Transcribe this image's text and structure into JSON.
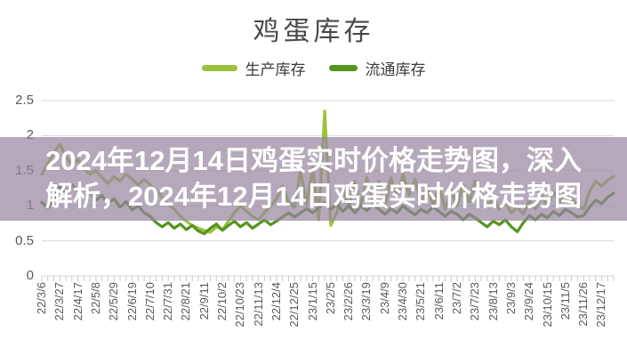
{
  "title": "鸡蛋库存",
  "legend": {
    "items": [
      {
        "label": "生产库存",
        "color": "#9cc13d",
        "swatch_width": 40
      },
      {
        "label": "流通库存",
        "color": "#55941f",
        "swatch_width": 32
      }
    ]
  },
  "overlay": {
    "line1": "2024年12月14日鸡蛋实时价格走势图，深入",
    "line2": "解析，2024年12月14日鸡蛋实时价格走势图",
    "text_color": "#ffffff",
    "bg_color": "rgba(149,131,158,0.7)"
  },
  "colors": {
    "gridline": "#d9d9d9",
    "tick": "#c8c8c8",
    "axis_text": "#595959",
    "title_text": "#484848"
  },
  "chart_data": {
    "type": "line",
    "title": "鸡蛋库存",
    "xlabel": "",
    "ylabel": "",
    "ylim": [
      0,
      2.5
    ],
    "grid": true,
    "legend_position": "top",
    "yticks": [
      0,
      0.5,
      1,
      1.5,
      2,
      2.5
    ],
    "ytick_labels": [
      "0",
      "0.5",
      "1",
      "1.5",
      "2",
      "2.5"
    ],
    "x_labels": [
      "22/3/6",
      "22/3/27",
      "22/4/17",
      "22/5/8",
      "22/5/29",
      "22/6/19",
      "22/7/10",
      "22/7/31",
      "22/8/21",
      "22/9/11",
      "22/10/2",
      "22/10/23",
      "22/11/13",
      "22/12/4",
      "22/12/25",
      "23/1/15",
      "23/2/5",
      "23/2/26",
      "23/3/19",
      "23/4/9",
      "23/4/30",
      "23/5/21",
      "23/6/11",
      "23/7/2",
      "23/7/23",
      "23/8/13",
      "23/9/3",
      "23/9/24",
      "23/10/15",
      "23/11/5",
      "23/11/26",
      "23/12/17"
    ],
    "x_label_every_n_points": 3,
    "series": [
      {
        "name": "生产库存",
        "color": "#9cc13d",
        "values": [
          1.45,
          1.6,
          1.75,
          1.88,
          1.7,
          1.58,
          1.66,
          1.52,
          1.45,
          1.5,
          1.4,
          1.32,
          1.42,
          1.35,
          1.45,
          1.38,
          1.3,
          1.38,
          1.3,
          1.22,
          1.12,
          1.02,
          0.95,
          0.85,
          0.78,
          0.72,
          0.68,
          0.65,
          0.62,
          0.7,
          0.66,
          0.78,
          0.9,
          1.0,
          0.92,
          0.85,
          0.8,
          0.9,
          1.0,
          1.1,
          1.28,
          1.05,
          0.98,
          1.5,
          1.02,
          1.55,
          0.8,
          2.35,
          0.72,
          0.9,
          1.25,
          0.98,
          1.35,
          1.0,
          1.4,
          1.05,
          1.35,
          0.98,
          1.4,
          1.1,
          1.45,
          1.15,
          1.38,
          1.05,
          1.3,
          1.0,
          1.28,
          0.95,
          1.22,
          1.0,
          1.3,
          1.05,
          1.35,
          1.15,
          1.0,
          1.1,
          0.95,
          1.05,
          0.9,
          0.98,
          0.88,
          1.08,
          0.95,
          1.15,
          1.0,
          1.2,
          1.05,
          1.25,
          1.1,
          1.0,
          0.95,
          1.2,
          1.35,
          1.28,
          1.36,
          1.42
        ]
      },
      {
        "name": "流通库存",
        "color": "#55941f",
        "values": [
          1.05,
          0.97,
          1.1,
          1.28,
          1.18,
          1.3,
          1.22,
          1.12,
          1.2,
          1.08,
          1.15,
          1.03,
          1.1,
          0.98,
          1.06,
          0.94,
          1.0,
          0.9,
          0.85,
          0.76,
          0.7,
          0.76,
          0.68,
          0.74,
          0.66,
          0.72,
          0.64,
          0.6,
          0.68,
          0.74,
          0.65,
          0.72,
          0.78,
          0.7,
          0.76,
          0.68,
          0.74,
          0.8,
          0.73,
          0.78,
          0.84,
          0.9,
          0.84,
          0.9,
          0.96,
          0.9,
          0.97,
          1.05,
          0.95,
          1.02,
          0.92,
          1.0,
          0.9,
          1.0,
          0.93,
          1.02,
          0.95,
          0.88,
          0.96,
          0.9,
          1.0,
          0.93,
          0.87,
          0.95,
          0.9,
          0.98,
          0.92,
          0.85,
          0.92,
          0.88,
          0.8,
          0.88,
          0.83,
          0.76,
          0.7,
          0.78,
          0.73,
          0.8,
          0.7,
          0.63,
          0.76,
          0.86,
          0.8,
          0.88,
          0.83,
          0.92,
          0.86,
          0.95,
          0.9,
          0.84,
          0.86,
          0.98,
          1.08,
          1.03,
          1.12,
          1.18
        ]
      }
    ]
  }
}
